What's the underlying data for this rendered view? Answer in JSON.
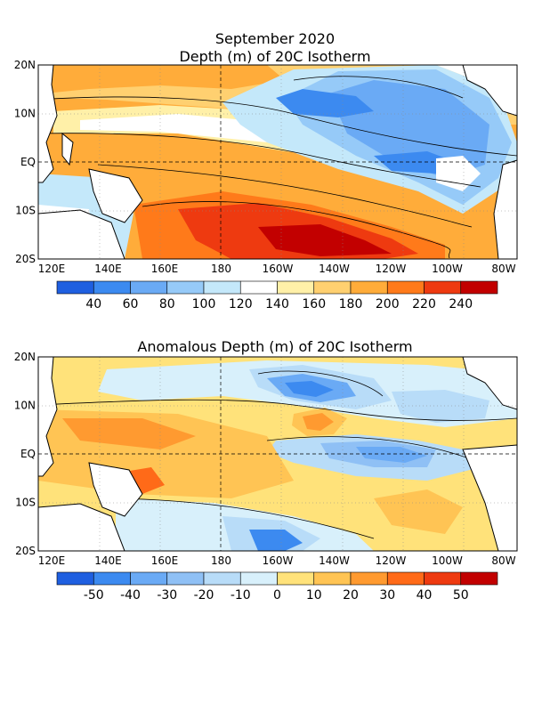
{
  "header": {
    "line1": "September 2020",
    "line2": "Depth (m) of 20C Isotherm"
  },
  "panel2_title": "Anomalous Depth (m) of 20C Isotherm",
  "lon_ticks": [
    "120E",
    "140E",
    "160E",
    "180",
    "160W",
    "140W",
    "120W",
    "100W",
    "80W"
  ],
  "lat_ticks": [
    "20N",
    "10N",
    "EQ",
    "10S",
    "20S"
  ],
  "chart_data": [
    {
      "type": "heatmap",
      "title": "Depth (m) of 20C Isotherm",
      "x_range": [
        "120E",
        "80W"
      ],
      "y_range": [
        "20S",
        "20N"
      ],
      "colorbar": {
        "labels": [
          "40",
          "60",
          "80",
          "100",
          "120",
          "140",
          "160",
          "180",
          "200",
          "220",
          "240"
        ],
        "colors": [
          "#1f5fe0",
          "#3c8af0",
          "#6aaaf5",
          "#96caf8",
          "#c4e8fa",
          "#ffffff",
          "#fff0a8",
          "#ffd070",
          "#ffac3a",
          "#ff7a1a",
          "#ee3a10",
          "#c20000"
        ]
      }
    },
    {
      "type": "heatmap",
      "title": "Anomalous Depth (m) of 20C Isotherm",
      "x_range": [
        "120E",
        "80W"
      ],
      "y_range": [
        "20S",
        "20N"
      ],
      "colorbar": {
        "labels": [
          "-50",
          "-40",
          "-30",
          "-20",
          "-10",
          "0",
          "10",
          "20",
          "30",
          "40",
          "50"
        ],
        "colors": [
          "#1f5fe0",
          "#3c8af0",
          "#6aaaf5",
          "#8fc0f5",
          "#b8dcf8",
          "#d8f0fb",
          "#ffe27a",
          "#ffc454",
          "#ff9a30",
          "#ff6a18",
          "#ee3a10",
          "#c20000"
        ]
      }
    }
  ]
}
